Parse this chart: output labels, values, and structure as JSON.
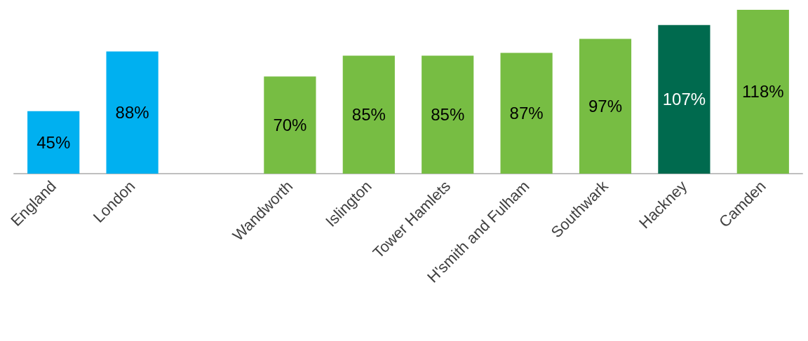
{
  "chart_data": {
    "type": "bar",
    "categories": [
      "England",
      "London",
      null,
      "Wandworth",
      "Islington",
      "Tower Hamlets",
      "H'smith and Fulham",
      "Southwark",
      "Hackney",
      "Camden"
    ],
    "values": [
      45,
      88,
      null,
      70,
      85,
      85,
      87,
      97,
      107,
      118
    ],
    "colors": [
      "#00b0f0",
      "#00b0f0",
      null,
      "#77bd43",
      "#77bd43",
      "#77bd43",
      "#77bd43",
      "#77bd43",
      "#006a4e",
      "#77bd43"
    ],
    "value_labels": [
      "45%",
      "88%",
      null,
      "70%",
      "85%",
      "85%",
      "87%",
      "97%",
      "107%",
      "118%"
    ]
  }
}
